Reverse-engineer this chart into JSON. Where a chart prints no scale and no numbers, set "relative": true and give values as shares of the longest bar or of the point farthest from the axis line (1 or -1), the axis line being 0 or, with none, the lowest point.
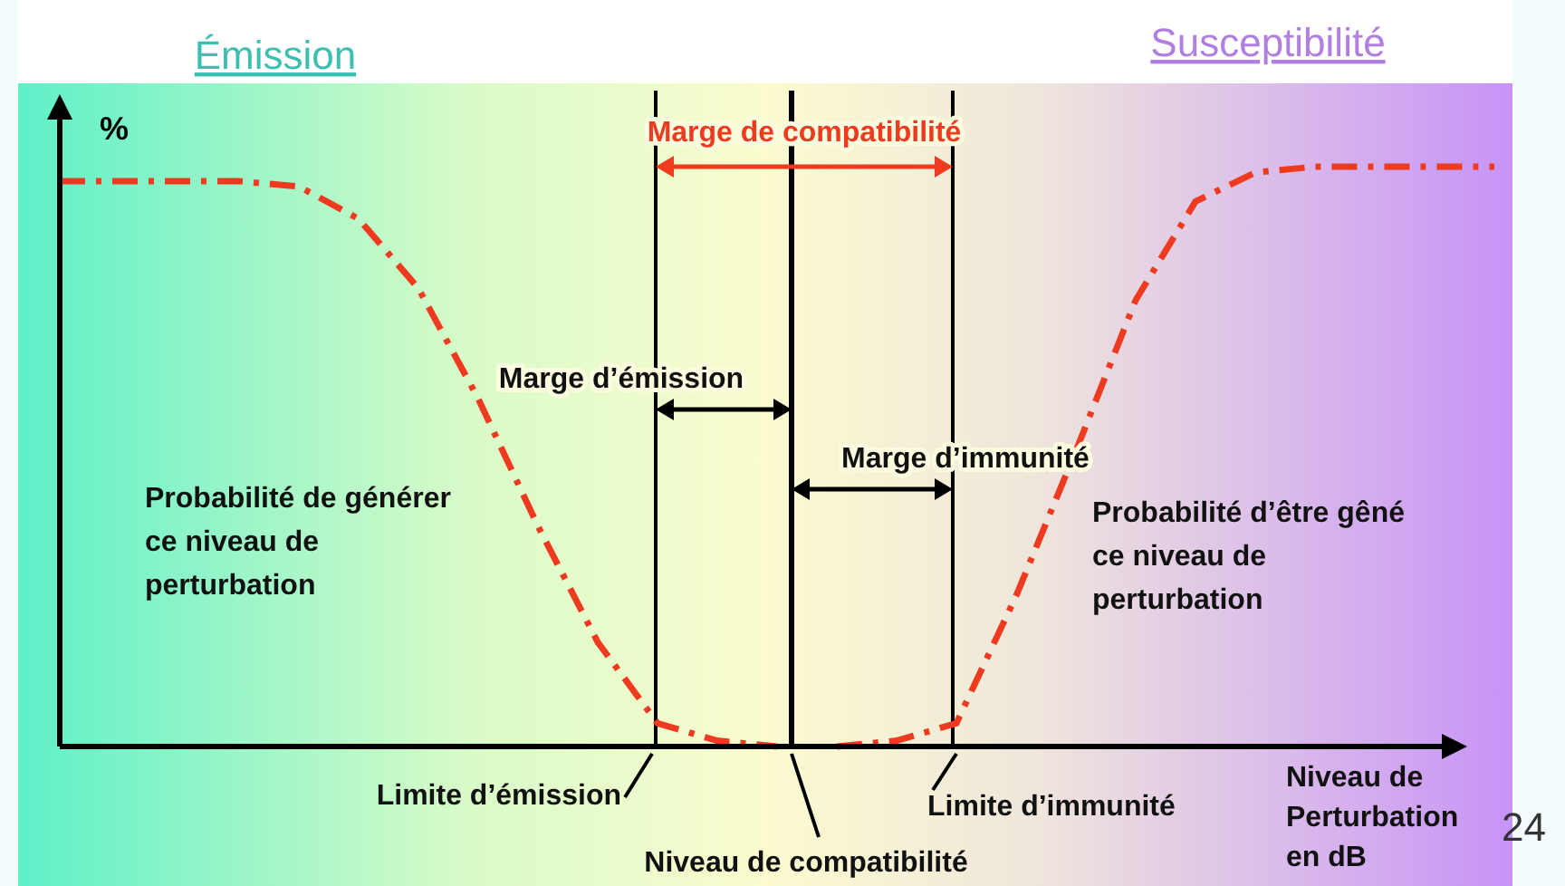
{
  "chart_data": {
    "type": "line",
    "relative": true,
    "line_style": "dashed",
    "xlabel": "Niveau de Perturbation en dB",
    "ylabel": "%",
    "categories": [
      null,
      null,
      null,
      null,
      null,
      null,
      null,
      null,
      null,
      null,
      null,
      null,
      null,
      null,
      null,
      null,
      null,
      null,
      null,
      null,
      null,
      null,
      null,
      null,
      null
    ],
    "series": [
      {
        "color": "#ee3b1f",
        "values": [
          0.975,
          0.975,
          0.975,
          0.975,
          0.966,
          0.91,
          0.79,
          0.6,
          0.38,
          0.18,
          0.04,
          0.01,
          0,
          null,
          null,
          null,
          null,
          null,
          null,
          null,
          null,
          null,
          null,
          null,
          null
        ]
      },
      {
        "color": "#ee3b1f",
        "values": [
          null,
          null,
          null,
          null,
          null,
          null,
          null,
          null,
          null,
          null,
          null,
          null,
          null,
          0,
          0.01,
          0.04,
          0.26,
          0.51,
          0.77,
          0.94,
          0.99,
          1,
          1,
          1,
          1
        ]
      }
    ],
    "annotations": [
      "Émission",
      "Susceptibilité",
      "Marge de compatibilité",
      "Marge d’émission",
      "Marge d’immunité",
      "Probabilité de générer ce niveau de perturbation",
      "Probabilité d’être gêné ce niveau de perturbation",
      "24",
      "Limite d’émission",
      "Niveau de compatibilité",
      "Limite d’immunité"
    ]
  }
}
